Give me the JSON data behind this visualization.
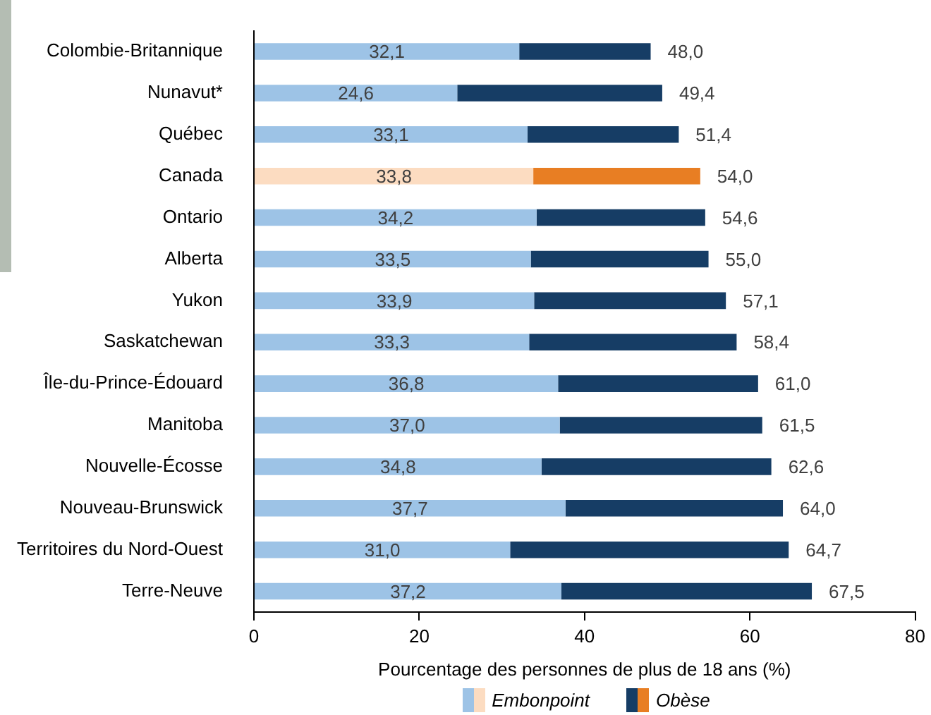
{
  "chart_data": {
    "type": "bar",
    "orientation": "horizontal",
    "stacked": true,
    "xlabel": "Pourcentage des personnes de plus de 18 ans (%)",
    "categories": [
      "Colombie-Britannique",
      "Nunavut*",
      "Québec",
      "Canada",
      "Ontario",
      "Alberta",
      "Yukon",
      "Saskatchewan",
      "Île-du-Prince-Édouard",
      "Manitoba",
      "Nouvelle-Écosse",
      "Nouveau-Brunswick",
      "Territoires du Nord-Ouest",
      "Terre-Neuve"
    ],
    "series": [
      {
        "name": "Embonpoint",
        "color": "#9dc3e6",
        "colors": [
          "#9dc3e6",
          "#9dc3e6",
          "#9dc3e6",
          "#fcdcc1",
          "#9dc3e6",
          "#9dc3e6",
          "#9dc3e6",
          "#9dc3e6",
          "#9dc3e6",
          "#9dc3e6",
          "#9dc3e6",
          "#9dc3e6",
          "#9dc3e6",
          "#9dc3e6"
        ],
        "values": [
          32.1,
          24.6,
          33.1,
          33.8,
          34.2,
          33.5,
          33.9,
          33.3,
          36.8,
          37.0,
          34.8,
          37.7,
          31.0,
          37.2
        ],
        "value_labels": [
          "32,1",
          "24,6",
          "33,1",
          "33,8",
          "34,2",
          "33,5",
          "33,9",
          "33,3",
          "36,8",
          "37,0",
          "34,8",
          "37,7",
          "31,0",
          "37,2"
        ]
      },
      {
        "name": "Obèse",
        "color": "#163d65",
        "colors": [
          "#163d65",
          "#163d65",
          "#163d65",
          "#e87e23",
          "#163d65",
          "#163d65",
          "#163d65",
          "#163d65",
          "#163d65",
          "#163d65",
          "#163d65",
          "#163d65",
          "#163d65",
          "#163d65"
        ],
        "values": [
          15.9,
          24.8,
          18.3,
          20.2,
          20.4,
          21.5,
          23.2,
          25.1,
          24.2,
          24.5,
          27.8,
          26.3,
          33.7,
          30.3
        ]
      }
    ],
    "totals": [
      "48,0",
      "49,4",
      "51,4",
      "54,0",
      "54,6",
      "55,0",
      "57,1",
      "58,4",
      "61,0",
      "61,5",
      "62,6",
      "64,0",
      "64,7",
      "67,5"
    ],
    "xlim": [
      0,
      80
    ],
    "xticks": [
      0,
      20,
      40,
      60,
      80
    ],
    "grid": false,
    "legend": "bottom"
  }
}
